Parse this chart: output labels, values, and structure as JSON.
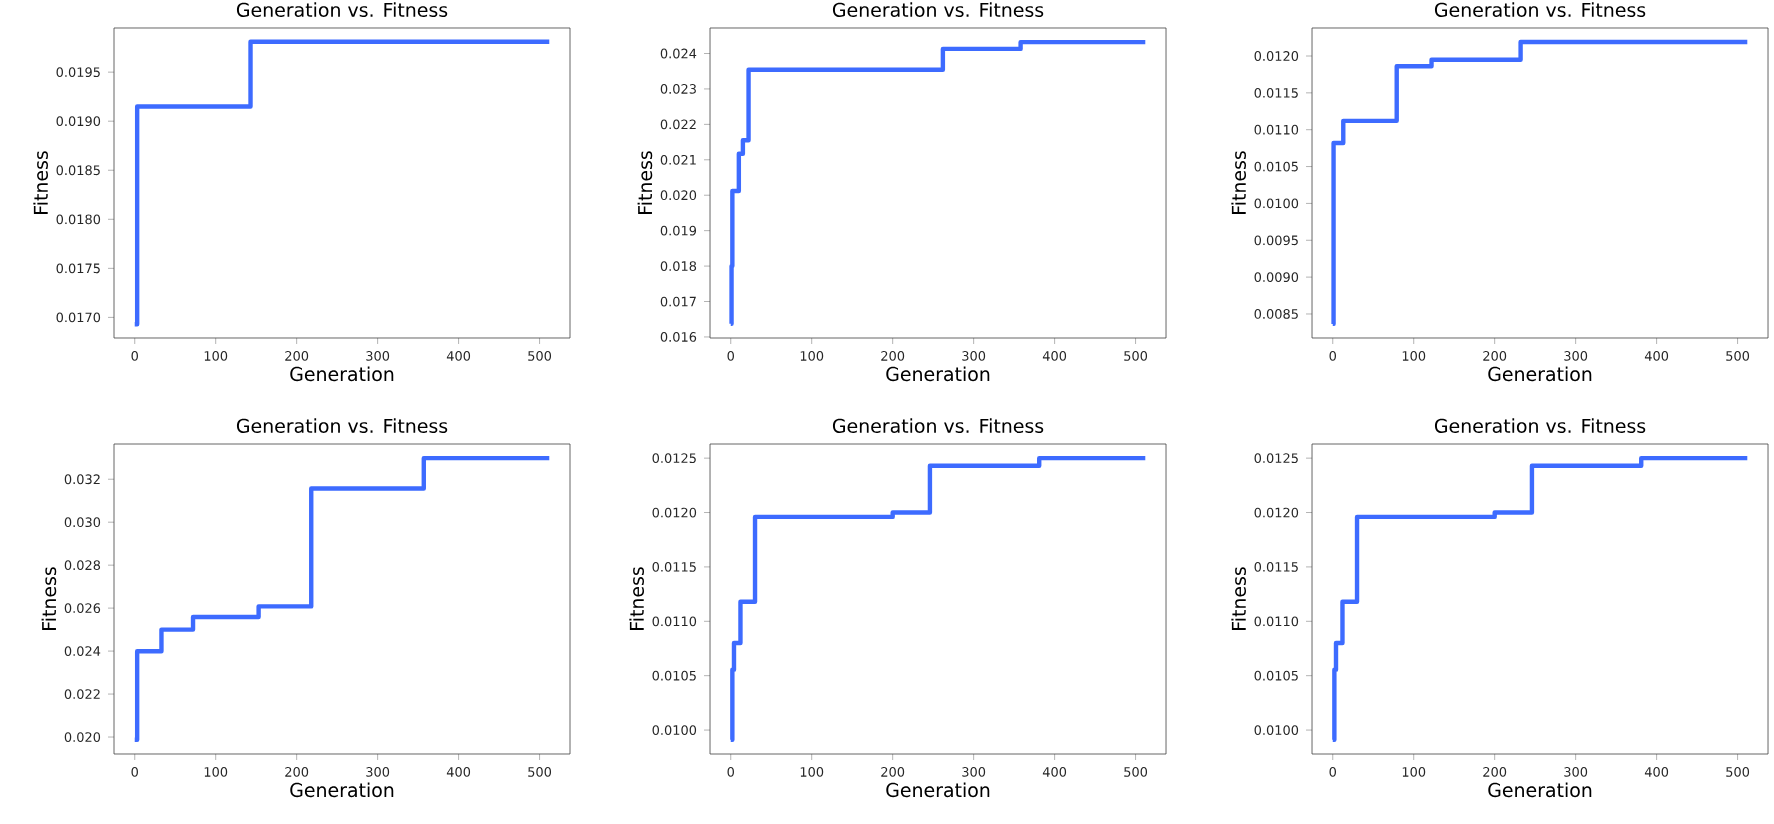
{
  "chart_data": [
    {
      "type": "step",
      "title": "Generation vs. Fitness",
      "xlabel": "Generation",
      "ylabel": "Fitness",
      "color": "#3d6bff",
      "x": [
        0,
        3,
        143,
        512
      ],
      "values": [
        0.01693,
        0.01915,
        0.01981,
        0.01981
      ],
      "xlim": [
        -25.6,
        537.6
      ],
      "ylim": [
        0.01679,
        0.01995
      ],
      "xticks": [
        0,
        100,
        200,
        300,
        400,
        500
      ],
      "yticks": [
        {
          "value": 0.017,
          "label": "0.0170"
        },
        {
          "value": 0.0175,
          "label": "0.0175"
        },
        {
          "value": 0.018,
          "label": "0.0180"
        },
        {
          "value": 0.0185,
          "label": "0.0185"
        },
        {
          "value": 0.019,
          "label": "0.0190"
        },
        {
          "value": 0.0195,
          "label": "0.0195"
        }
      ]
    },
    {
      "type": "step",
      "title": "Generation vs. Fitness",
      "xlabel": "Generation",
      "ylabel": "Fitness",
      "color": "#3d6bff",
      "x": [
        0,
        1,
        2,
        10,
        15,
        22,
        262,
        358,
        512
      ],
      "values": [
        0.01637,
        0.018,
        0.02012,
        0.02117,
        0.02155,
        0.02354,
        0.02413,
        0.02432,
        0.02432
      ],
      "xlim": [
        -25.6,
        537.6
      ],
      "ylim": [
        0.01597,
        0.02472
      ],
      "xticks": [
        0,
        100,
        200,
        300,
        400,
        500
      ],
      "yticks": [
        0.016,
        0.017,
        0.018,
        0.019,
        {
          "value": 0.02,
          "label": "0.020"
        },
        0.021,
        0.022,
        0.023,
        0.024
      ]
    },
    {
      "type": "step",
      "title": "Generation vs. Fitness",
      "xlabel": "Generation",
      "ylabel": "Fitness",
      "color": "#3d6bff",
      "x": [
        0,
        1,
        13,
        79,
        122,
        232,
        512
      ],
      "values": [
        0.008365,
        0.01082,
        0.01112,
        0.01186,
        0.01195,
        0.01219,
        0.01219
      ],
      "xlim": [
        -25.6,
        537.6
      ],
      "ylim": [
        0.008174,
        0.01238
      ],
      "xticks": [
        0,
        100,
        200,
        300,
        400,
        500
      ],
      "yticks": [
        0.0085,
        {
          "value": 0.009,
          "label": "0.0090"
        },
        0.0095,
        {
          "value": 0.01,
          "label": "0.0100"
        },
        0.0105,
        {
          "value": 0.011,
          "label": "0.0110"
        },
        0.0115,
        {
          "value": 0.012,
          "label": "0.0120"
        }
      ]
    },
    {
      "type": "step",
      "title": "Generation vs. Fitness",
      "xlabel": "Generation",
      "ylabel": "Fitness",
      "color": "#3d6bff",
      "x": [
        0,
        3,
        33,
        72,
        153,
        218,
        357,
        512
      ],
      "values": [
        0.01987,
        0.02399,
        0.025,
        0.02559,
        0.02608,
        0.03157,
        0.03298,
        0.03298
      ],
      "xlim": [
        -25.6,
        537.6
      ],
      "ylim": [
        0.01921,
        0.03364
      ],
      "xticks": [
        0,
        100,
        200,
        300,
        400,
        500
      ],
      "yticks": [
        {
          "value": 0.02,
          "label": "0.020"
        },
        0.022,
        0.024,
        0.026,
        0.028,
        {
          "value": 0.03,
          "label": "0.030"
        },
        0.032
      ]
    },
    {
      "type": "step",
      "title": "Generation vs. Fitness",
      "xlabel": "Generation",
      "ylabel": "Fitness",
      "color": "#3d6bff",
      "x": [
        0,
        2,
        4,
        12,
        30,
        200,
        246,
        381,
        512
      ],
      "values": [
        0.00991,
        0.010555,
        0.0108,
        0.01118,
        0.01196,
        0.012,
        0.01243,
        0.0125,
        0.0125
      ],
      "xlim": [
        -25.6,
        537.6
      ],
      "ylim": [
        0.00978,
        0.01263
      ],
      "xticks": [
        0,
        100,
        200,
        300,
        400,
        500
      ],
      "yticks": [
        {
          "value": 0.01,
          "label": "0.0100"
        },
        0.0105,
        {
          "value": 0.011,
          "label": "0.0110"
        },
        0.0115,
        {
          "value": 0.012,
          "label": "0.0120"
        },
        0.0125
      ]
    },
    {
      "type": "step",
      "title": "Generation vs. Fitness",
      "xlabel": "Generation",
      "ylabel": "Fitness",
      "color": "#3d6bff",
      "x": [
        0,
        2,
        4,
        12,
        30,
        200,
        246,
        381,
        512
      ],
      "values": [
        0.00991,
        0.010555,
        0.0108,
        0.01118,
        0.01196,
        0.012,
        0.01243,
        0.0125,
        0.0125
      ],
      "xlim": [
        -25.6,
        537.6
      ],
      "ylim": [
        0.00978,
        0.01263
      ],
      "xticks": [
        0,
        100,
        200,
        300,
        400,
        500
      ],
      "yticks": [
        {
          "value": 0.01,
          "label": "0.0100"
        },
        0.0105,
        {
          "value": 0.011,
          "label": "0.0110"
        },
        0.0115,
        {
          "value": 0.012,
          "label": "0.0120"
        },
        0.0125
      ]
    }
  ]
}
